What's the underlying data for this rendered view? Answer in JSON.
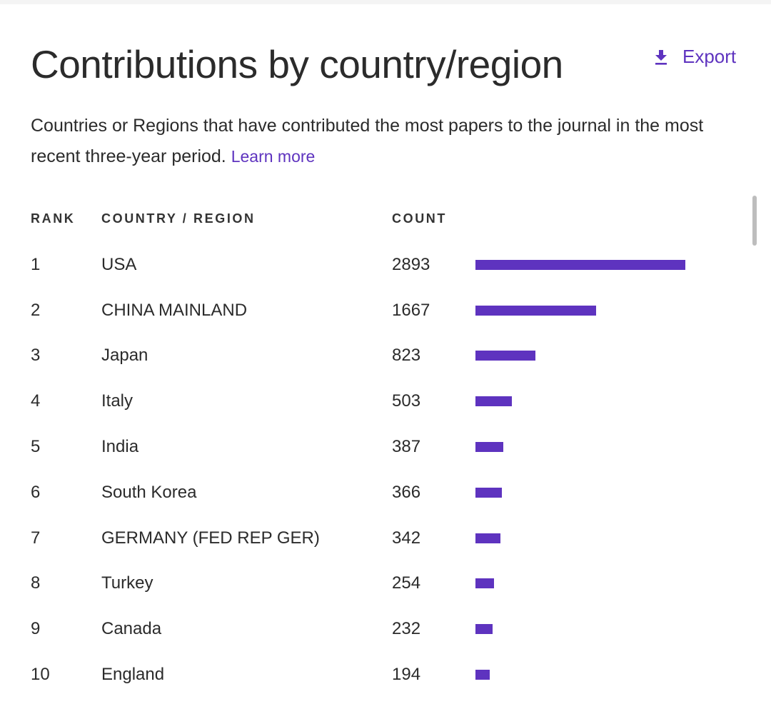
{
  "header": {
    "title": "Contributions by country/region",
    "export_label": "Export",
    "export_icon": "download-icon",
    "accent_color": "#5e33bf"
  },
  "description": {
    "text": "Countries or Regions that have contributed the most papers to the journal in the most recent three-year period.",
    "learn_more": "Learn more"
  },
  "table": {
    "columns": [
      "RANK",
      "COUNTRY / REGION",
      "COUNT"
    ],
    "rows": [
      {
        "rank": "1",
        "country": "USA",
        "count": "2893"
      },
      {
        "rank": "2",
        "country": "CHINA MAINLAND",
        "count": "1667"
      },
      {
        "rank": "3",
        "country": "Japan",
        "count": "823"
      },
      {
        "rank": "4",
        "country": "Italy",
        "count": "503"
      },
      {
        "rank": "5",
        "country": "India",
        "count": "387"
      },
      {
        "rank": "6",
        "country": "South Korea",
        "count": "366"
      },
      {
        "rank": "7",
        "country": "GERMANY (FED REP GER)",
        "count": "342"
      },
      {
        "rank": "8",
        "country": "Turkey",
        "count": "254"
      },
      {
        "rank": "9",
        "country": "Canada",
        "count": "232"
      },
      {
        "rank": "10",
        "country": "England",
        "count": "194"
      }
    ]
  },
  "chart_data": {
    "type": "bar",
    "categories": [
      "USA",
      "CHINA MAINLAND",
      "Japan",
      "Italy",
      "India",
      "South Korea",
      "GERMANY (FED REP GER)",
      "Turkey",
      "Canada",
      "England"
    ],
    "values": [
      2893,
      1667,
      823,
      503,
      387,
      366,
      342,
      254,
      232,
      194
    ],
    "bar_color": "#5e33bf"
  }
}
